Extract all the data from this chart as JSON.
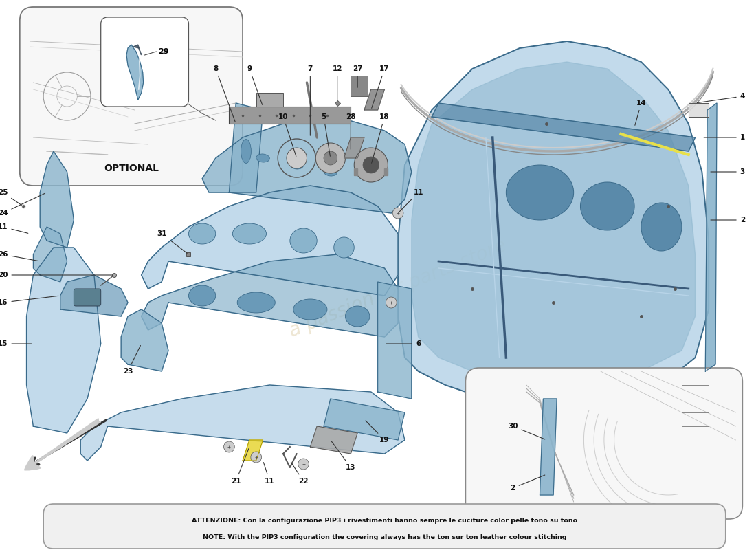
{
  "bg_color": "#ffffff",
  "note_line1": "ATTENZIONE: Con la configurazione PIP3 i rivestimenti hanno sempre le cuciture color pelle tono su tono",
  "note_line2": "NOTE: With the PIP3 configuration the covering always has the ton sur ton leather colour stitching",
  "optional_label": "OPTIONAL",
  "watermark_line1": "a passion for",
  "watermark_line2": "parts store",
  "blue_fill": "#b8d4e8",
  "blue_mid": "#8ab4cc",
  "blue_dark": "#5a8aaa",
  "blue_edge": "#3a6a8a",
  "gray_line": "#888888",
  "gray_dark": "#555555",
  "label_fs": 7.5,
  "note_fs": 6.8
}
